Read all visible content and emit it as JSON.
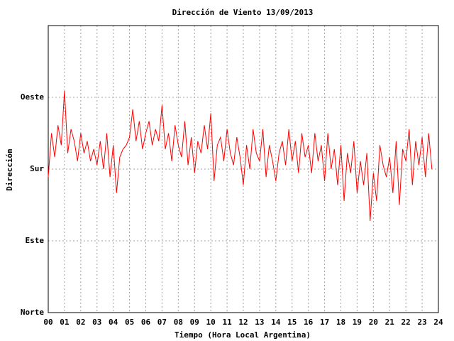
{
  "chart_data": {
    "type": "line",
    "title": "Dirección de Viento 13/09/2013",
    "x_label": "Tiempo (Hora Local Argentina)",
    "y_label": "Dirección",
    "xlim": [
      0,
      24
    ],
    "xticks": [
      {
        "value": 0,
        "label": "00"
      },
      {
        "value": 1,
        "label": "01"
      },
      {
        "value": 2,
        "label": "02"
      },
      {
        "value": 3,
        "label": "03"
      },
      {
        "value": 4,
        "label": "04"
      },
      {
        "value": 5,
        "label": "05"
      },
      {
        "value": 6,
        "label": "06"
      },
      {
        "value": 7,
        "label": "07"
      },
      {
        "value": 8,
        "label": "08"
      },
      {
        "value": 9,
        "label": "09"
      },
      10,
      11,
      12,
      13,
      14,
      15,
      16,
      17,
      18,
      19,
      20,
      21,
      22,
      23,
      24
    ],
    "ylim": [
      0,
      360
    ],
    "yticks": [
      {
        "value": 0,
        "label": "Norte"
      },
      {
        "value": 90,
        "label": "Este"
      },
      {
        "value": 180,
        "label": "Sur"
      },
      {
        "value": 270,
        "label": "Oeste"
      }
    ],
    "grid": true,
    "series": [
      {
        "color": "#ff0000",
        "x": [
          0.0,
          0.2,
          0.4,
          0.6,
          0.8,
          1.0,
          1.2,
          1.4,
          1.6,
          1.8,
          2.0,
          2.2,
          2.4,
          2.6,
          2.8,
          3.0,
          3.2,
          3.4,
          3.6,
          3.8,
          4.0,
          4.2,
          4.4,
          4.6,
          4.8,
          5.0,
          5.2,
          5.4,
          5.6,
          5.8,
          6.0,
          6.2,
          6.4,
          6.6,
          6.8,
          7.0,
          7.2,
          7.4,
          7.6,
          7.8,
          8.0,
          8.2,
          8.4,
          8.6,
          8.8,
          9.0,
          9.2,
          9.4,
          9.6,
          9.8,
          10.0,
          10.2,
          10.4,
          10.6,
          10.8,
          11.0,
          11.2,
          11.4,
          11.6,
          11.8,
          12.0,
          12.2,
          12.4,
          12.6,
          12.8,
          13.0,
          13.2,
          13.4,
          13.6,
          13.8,
          14.0,
          14.2,
          14.4,
          14.6,
          14.8,
          15.0,
          15.2,
          15.4,
          15.6,
          15.8,
          16.0,
          16.2,
          16.4,
          16.6,
          16.8,
          17.0,
          17.2,
          17.4,
          17.6,
          17.8,
          18.0,
          18.2,
          18.4,
          18.6,
          18.8,
          19.0,
          19.2,
          19.4,
          19.6,
          19.8,
          20.0,
          20.2,
          20.4,
          20.6,
          20.8,
          21.0,
          21.2,
          21.4,
          21.6,
          21.8,
          22.0,
          22.2,
          22.4,
          22.6,
          22.8,
          23.0,
          23.2,
          23.4,
          23.6
        ],
        "values": [
          170,
          225,
          195,
          235,
          210,
          278,
          200,
          230,
          215,
          190,
          225,
          200,
          215,
          190,
          205,
          185,
          215,
          180,
          225,
          170,
          210,
          150,
          195,
          205,
          210,
          220,
          255,
          215,
          240,
          205,
          225,
          240,
          210,
          230,
          215,
          260,
          205,
          225,
          190,
          235,
          210,
          195,
          240,
          185,
          220,
          175,
          215,
          200,
          235,
          205,
          250,
          165,
          210,
          220,
          190,
          230,
          200,
          185,
          220,
          195,
          160,
          210,
          180,
          230,
          200,
          190,
          230,
          170,
          210,
          190,
          165,
          200,
          215,
          185,
          230,
          190,
          215,
          175,
          225,
          195,
          210,
          175,
          225,
          190,
          210,
          165,
          225,
          180,
          205,
          160,
          210,
          140,
          200,
          175,
          215,
          150,
          190,
          160,
          200,
          115,
          175,
          140,
          210,
          185,
          170,
          195,
          150,
          215,
          135,
          205,
          190,
          230,
          160,
          215,
          185,
          220,
          170,
          225,
          180
        ]
      }
    ]
  }
}
